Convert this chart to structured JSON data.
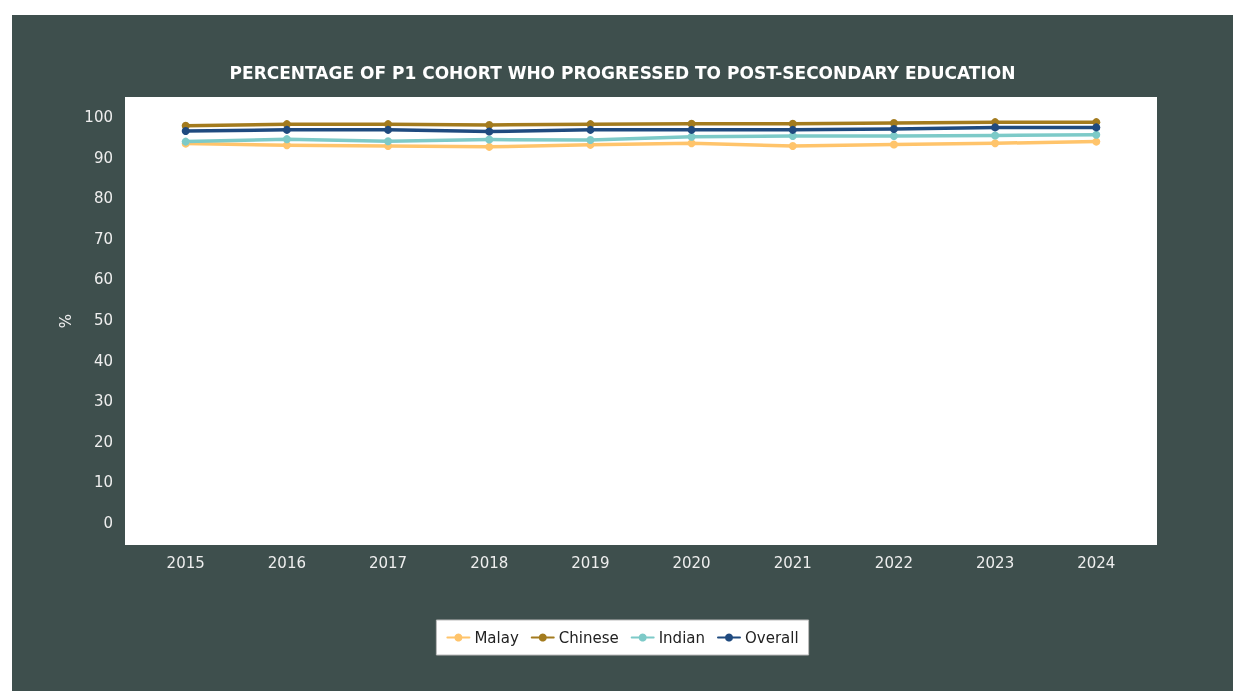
{
  "chart_data": {
    "type": "line",
    "title": "PERCENTAGE OF P1 COHORT WHO PROGRESSED TO POST-SECONDARY EDUCATION",
    "ylabel": "%",
    "x": [
      2015,
      2016,
      2017,
      2018,
      2019,
      2020,
      2021,
      2022,
      2023,
      2024
    ],
    "xlim": [
      2014.4,
      2024.6
    ],
    "xticks": [
      2015,
      2016,
      2017,
      2018,
      2019,
      2020,
      2021,
      2022,
      2023,
      2024
    ],
    "ylim": [
      -5.5,
      105
    ],
    "yticks": [
      0,
      10,
      20,
      30,
      40,
      50,
      60,
      70,
      80,
      90,
      100
    ],
    "series": [
      {
        "name": "Malay",
        "color": "#ffc46b",
        "values": [
          93.5,
          93.1,
          92.9,
          92.7,
          93.2,
          93.6,
          92.9,
          93.3,
          93.6,
          94.0
        ]
      },
      {
        "name": "Chinese",
        "color": "#a37b1e",
        "values": [
          97.9,
          98.3,
          98.3,
          98.1,
          98.3,
          98.4,
          98.4,
          98.6,
          98.8,
          98.8
        ]
      },
      {
        "name": "Indian",
        "color": "#7dcac8",
        "values": [
          94.0,
          94.6,
          94.1,
          94.5,
          94.4,
          95.2,
          95.4,
          95.4,
          95.5,
          95.7
        ]
      },
      {
        "name": "Overall",
        "color": "#1f4a7f",
        "values": [
          96.6,
          96.9,
          96.9,
          96.5,
          96.9,
          96.9,
          96.9,
          97.1,
          97.5,
          97.5
        ]
      }
    ],
    "grid": false,
    "legend": "bottom",
    "marker": "circle",
    "line_style": "solid"
  }
}
